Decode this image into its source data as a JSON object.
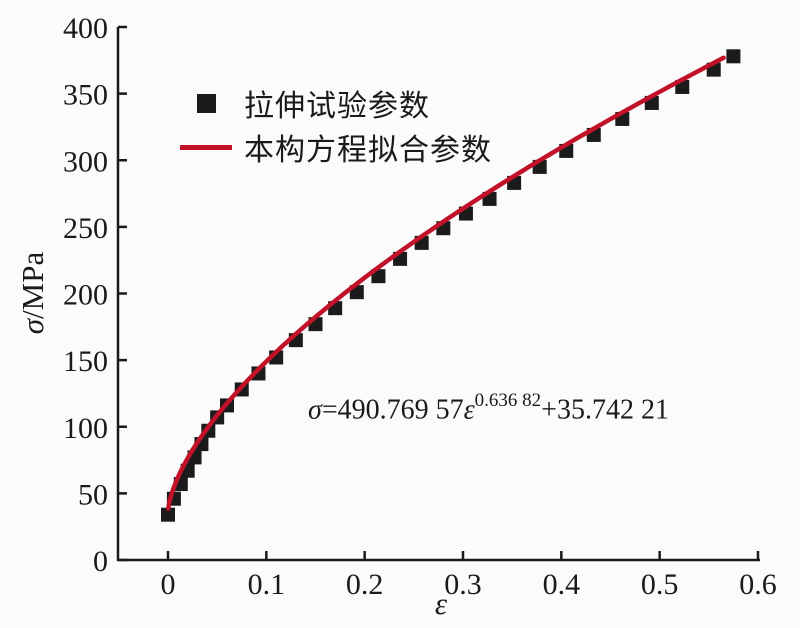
{
  "figure": {
    "background": "#fbfbfb",
    "axis_color": "#1a1a1a"
  },
  "ylabel": {
    "symbol": "σ",
    "unit": "/MPa"
  },
  "xlabel": {
    "symbol": "ε"
  },
  "legend": {
    "items": [
      {
        "marker": "square",
        "color": "#1b1b1b",
        "label": "拉伸试验参数"
      },
      {
        "marker": "line",
        "color": "#c11229",
        "label": "本构方程拟合参数"
      }
    ]
  },
  "equation": {
    "sigma": "σ",
    "prefix": "=490.769 57",
    "epsilon": "ε",
    "exponent": "0.636 82",
    "suffix": "+35.742 21",
    "full_text": "σ=490.769 57ε^0.636 82+35.742 21"
  },
  "chart_data": {
    "type": "scatter",
    "title": "",
    "xlabel": "ε",
    "ylabel": "σ/MPa",
    "xlim": [
      -0.05,
      0.6
    ],
    "ylim": [
      0,
      400
    ],
    "xticks": [
      0,
      0.1,
      0.2,
      0.3,
      0.4,
      0.5,
      0.6
    ],
    "yticks": [
      0,
      50,
      100,
      150,
      200,
      250,
      300,
      350,
      400
    ],
    "grid": false,
    "legend_position": "upper-left-inside",
    "series": [
      {
        "name": "拉伸试验参数",
        "type": "scatter",
        "marker": "square",
        "marker_size": 14,
        "color": "#1b1b1b",
        "points": [
          [
            0.0,
            34
          ],
          [
            0.006,
            46
          ],
          [
            0.013,
            57
          ],
          [
            0.02,
            67
          ],
          [
            0.027,
            77
          ],
          [
            0.034,
            87
          ],
          [
            0.041,
            97
          ],
          [
            0.05,
            107
          ],
          [
            0.06,
            116
          ],
          [
            0.075,
            128
          ],
          [
            0.092,
            140
          ],
          [
            0.11,
            152
          ],
          [
            0.13,
            165
          ],
          [
            0.15,
            177
          ],
          [
            0.17,
            189
          ],
          [
            0.192,
            201
          ],
          [
            0.214,
            213
          ],
          [
            0.236,
            226
          ],
          [
            0.258,
            238
          ],
          [
            0.28,
            249
          ],
          [
            0.303,
            260
          ],
          [
            0.327,
            271
          ],
          [
            0.352,
            283
          ],
          [
            0.378,
            295
          ],
          [
            0.405,
            307
          ],
          [
            0.433,
            319
          ],
          [
            0.462,
            331
          ],
          [
            0.492,
            343
          ],
          [
            0.523,
            355
          ],
          [
            0.555,
            368
          ],
          [
            0.575,
            378
          ]
        ]
      },
      {
        "name": "本构方程拟合参数",
        "type": "line",
        "color": "#c11229",
        "line_width": 4.5,
        "fit": {
          "A": 490.76957,
          "n": 0.63682,
          "B": 35.74221
        },
        "x_range": [
          0.0003,
          0.565
        ],
        "equation_text": "σ=490.769 57ε^0.636 82+35.742 21"
      }
    ]
  }
}
